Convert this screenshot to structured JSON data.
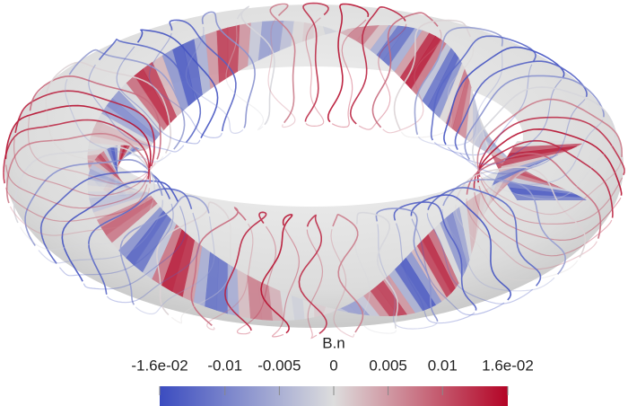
{
  "colorbar": {
    "title": "B.n",
    "range": [
      -0.016,
      0.016
    ],
    "ticks": [
      {
        "value": -0.016,
        "label": "-1.6e-02"
      },
      -0.01,
      -0.005,
      0,
      0.005,
      0.01,
      {
        "value": 0.016,
        "label": "1.6e-02"
      }
    ],
    "colormap": [
      "#3b4cc0",
      "#dddddd",
      "#b40426"
    ]
  }
}
